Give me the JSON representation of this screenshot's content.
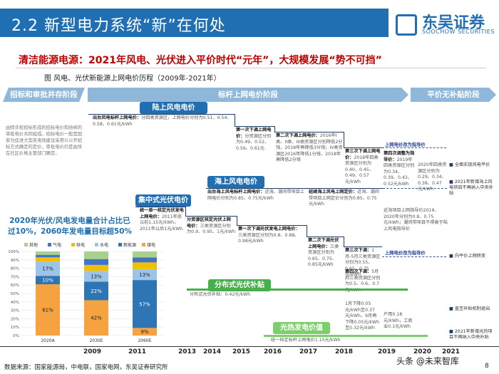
{
  "header": {
    "title": "2.2 新型电力系统“新”在何处",
    "logo_cn": "东吴证券",
    "logo_en": "SOOCHOW SECURITIES",
    "brand_color": "#1f6fb2"
  },
  "subtitle": "清洁能源电源：2021年风电、光伏进入平价时代“元年”，大规模发展“势不可挡”",
  "caption": "图   风电、光伏新能源上网电价历程（2009年-2021年）",
  "phases": [
    "招标和审批并存阶段",
    "标杆上网电价阶段",
    "平价无补贴阶段"
  ],
  "side_text": "由特许权招标形成的招标电价和持续的审批电价共同组成。招标电价一般是国家为促进大型风电场建设采用以公开招标方式确定的定价，审批电价仍是由所在社区价格主管部门确定。",
  "labels": {
    "onshore_wind": "陆上风电电价",
    "offshore_wind": "海上风电电价",
    "centralized_pv": "集中式光伏电价",
    "distributed_pv": "分布式光伏补贴",
    "csp": "光热发电价值"
  },
  "notes": {
    "n1_title": "出台风电标杆上网电价：",
    "n1_text": "分四类资源区，上网电价分别为0.51、0.54、0.58、0.61元/kWh",
    "n2_title": "第一次下调上网电价：",
    "n2_text": "分资源区分别为0.49、0.52、0.56、0.61元",
    "n3_title": "第二次下调上网电价：",
    "n3_text": "2016年I类、II类、III类资源区分别降低2分钱，2018年再降低3分钱；IV类资源区2016年降低1分钱，2018年再降低2分钱",
    "n4_title": "第三次下调上网电价：",
    "n4_text": "2018年四类资源区分别为0.40、0.45、0.49、0.57元/kWh",
    "n5_title": "第四次调整为指导价：",
    "n5_text": "2019年四类资源区分别为0.34、0.39、0.43、0.52元/kWh",
    "n6_text": "2020年四类资源区分别为0.29、0.34、0.38、0.47元/kWh",
    "n7_title": "出台海上风电标杆上网电价：",
    "n7_text": "近海、潮间带项目上网电价分别为0.85、0.75元/kWh",
    "n8_title": "延续海上风电上网定价：",
    "n8_text": "近海、潮间带项目上网定价分别为0.85、0.75元/kWh",
    "n9_text": "近海项目上网指导价2019、2020年分别为0.8、0.75元/kWh；潮间带项目不得高于陆上风电指导价",
    "n10_title": "统一单一核定光伏发电上网电价：",
    "n10_text": "2011年底以前1.15元/kWh，2011年以后1元/kWh",
    "n11_title": "分资源区核定光伏上网电价：",
    "n11_text": "三类资源区分别为0.9、0.95、1元/kWh",
    "n12_title": "第一次下调光伏发电上网电价：",
    "n12_text": "三类资源区分别为0.8、0.88、0.98元/kWh",
    "n13_title": "第二次下调光伏上网电价：",
    "n13_text": "三类资源区分别为0.65、0.75、0.85元/kWh",
    "n14_title": "第三次下调：",
    "n14_text": "1月-5月三类资源区分别为0.55、0.65、0.75元/kWh",
    "n15_title": "第四次下调：",
    "n15_text": "5月后三类资源区分别为0.5、0.6、0.7元/kWh",
    "n16_text": "分布式光伏补贴：0.42元/kWh",
    "n17_text": "1月下降0.05元/kWh至0.37元/kWh，6月再下降0.05元/kWh至0.32元/kWh",
    "n18_text": "户用0.18元/kWh，工商业0.1元/kWh",
    "n19_text": "统一核定标杆上网电价1.15元/kWh",
    "arrow1": "上网电价改为指导价",
    "arrow2": "上网电价改为指导价"
  },
  "right_notes": [
    "全面实现风电平价",
    "2021年新增海上风电项目不再纳入中央补贴",
    "向平价上网转变",
    "直至补贴机制退出",
    "2021年新增光热项目不再纳入中央补贴"
  ],
  "chart_title": "2020年光伏/风电发电量合计占比已过10%，2060年发电量目标超50%",
  "chart_data": {
    "type": "bar",
    "stacked": true,
    "categories": [
      "2020A",
      "2030E",
      "2060E"
    ],
    "legend": [
      "其他",
      "气电",
      "核电",
      "水电",
      "新能源",
      "煤电"
    ],
    "colors": [
      "#a9d18e",
      "#4472c4",
      "#f0c000",
      "#9dc3e6",
      "#2e75b6",
      "#f4a340"
    ],
    "series": [
      {
        "name": "煤电",
        "values": [
          61,
          42,
          9
        ]
      },
      {
        "name": "新能源",
        "values": [
          10,
          22,
          57
        ]
      },
      {
        "name": "水电",
        "values": [
          17,
          13,
          13
        ]
      },
      {
        "name": "核电",
        "values": [
          5,
          7,
          8
        ]
      },
      {
        "name": "气电",
        "values": [
          3,
          7,
          6
        ]
      },
      {
        "name": "其他",
        "values": [
          4,
          9,
          7
        ]
      }
    ],
    "data_labels": {
      "煤电": [
        "61%",
        "42%",
        "9%"
      ],
      "新能源": [
        "10%",
        "22%",
        "57%"
      ],
      "水电": [
        "17%",
        "13%",
        "13%"
      ]
    },
    "yticks": [
      "0%",
      "10%",
      "20%",
      "30%",
      "40%",
      "50%",
      "60%",
      "70%",
      "80%",
      "90%",
      "100%"
    ],
    "ylim": [
      0,
      100
    ]
  },
  "years": [
    "2009",
    "2011",
    "2013",
    "2014",
    "2015",
    "2016",
    "2017",
    "2018",
    "2019",
    "2020",
    "2021"
  ],
  "footer": "数据来源：国家能源局，中电联，国家电网，东吴证券研究所",
  "page_number": "8",
  "watermark": "头条 @未来智库"
}
